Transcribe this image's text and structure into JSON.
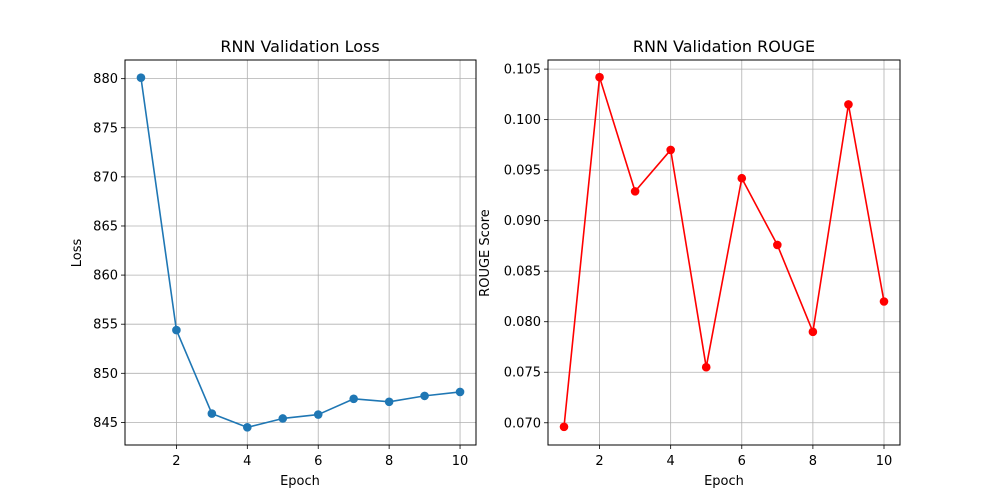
{
  "chart_data": [
    {
      "type": "line",
      "title": "RNN Validation Loss",
      "xlabel": "Epoch",
      "ylabel": "Loss",
      "x": [
        1,
        2,
        3,
        4,
        5,
        6,
        7,
        8,
        9,
        10
      ],
      "series": [
        {
          "values": [
            880.1,
            854.4,
            845.9,
            844.5,
            845.4,
            845.8,
            847.4,
            847.1,
            847.7,
            848.1
          ],
          "color": "#1f77b4"
        }
      ],
      "xlim": [
        0.55,
        10.45
      ],
      "ylim": [
        842.7,
        881.9
      ],
      "xticks": [
        2,
        4,
        6,
        8,
        10
      ],
      "xtick_labels": [
        "2",
        "4",
        "6",
        "8",
        "10"
      ],
      "yticks": [
        845,
        850,
        855,
        860,
        865,
        870,
        875,
        880
      ],
      "ytick_labels": [
        "845",
        "850",
        "855",
        "860",
        "865",
        "870",
        "875",
        "880"
      ],
      "grid": true,
      "marker": "circle"
    },
    {
      "type": "line",
      "title": "RNN Validation ROUGE",
      "xlabel": "Epoch",
      "ylabel": "ROUGE Score",
      "x": [
        1,
        2,
        3,
        4,
        5,
        6,
        7,
        8,
        9,
        10
      ],
      "series": [
        {
          "values": [
            0.0696,
            0.1042,
            0.0929,
            0.097,
            0.0755,
            0.0942,
            0.0876,
            0.079,
            0.1015,
            0.082
          ],
          "color": "#ff0000"
        }
      ],
      "xlim": [
        0.55,
        10.45
      ],
      "ylim": [
        0.0678,
        0.1059
      ],
      "xticks": [
        2,
        4,
        6,
        8,
        10
      ],
      "xtick_labels": [
        "2",
        "4",
        "6",
        "8",
        "10"
      ],
      "yticks": [
        0.07,
        0.075,
        0.08,
        0.085,
        0.09,
        0.095,
        0.1,
        0.105
      ],
      "ytick_labels": [
        "0.070",
        "0.075",
        "0.080",
        "0.085",
        "0.090",
        "0.095",
        "0.100",
        "0.105"
      ],
      "grid": true,
      "marker": "circle"
    }
  ]
}
